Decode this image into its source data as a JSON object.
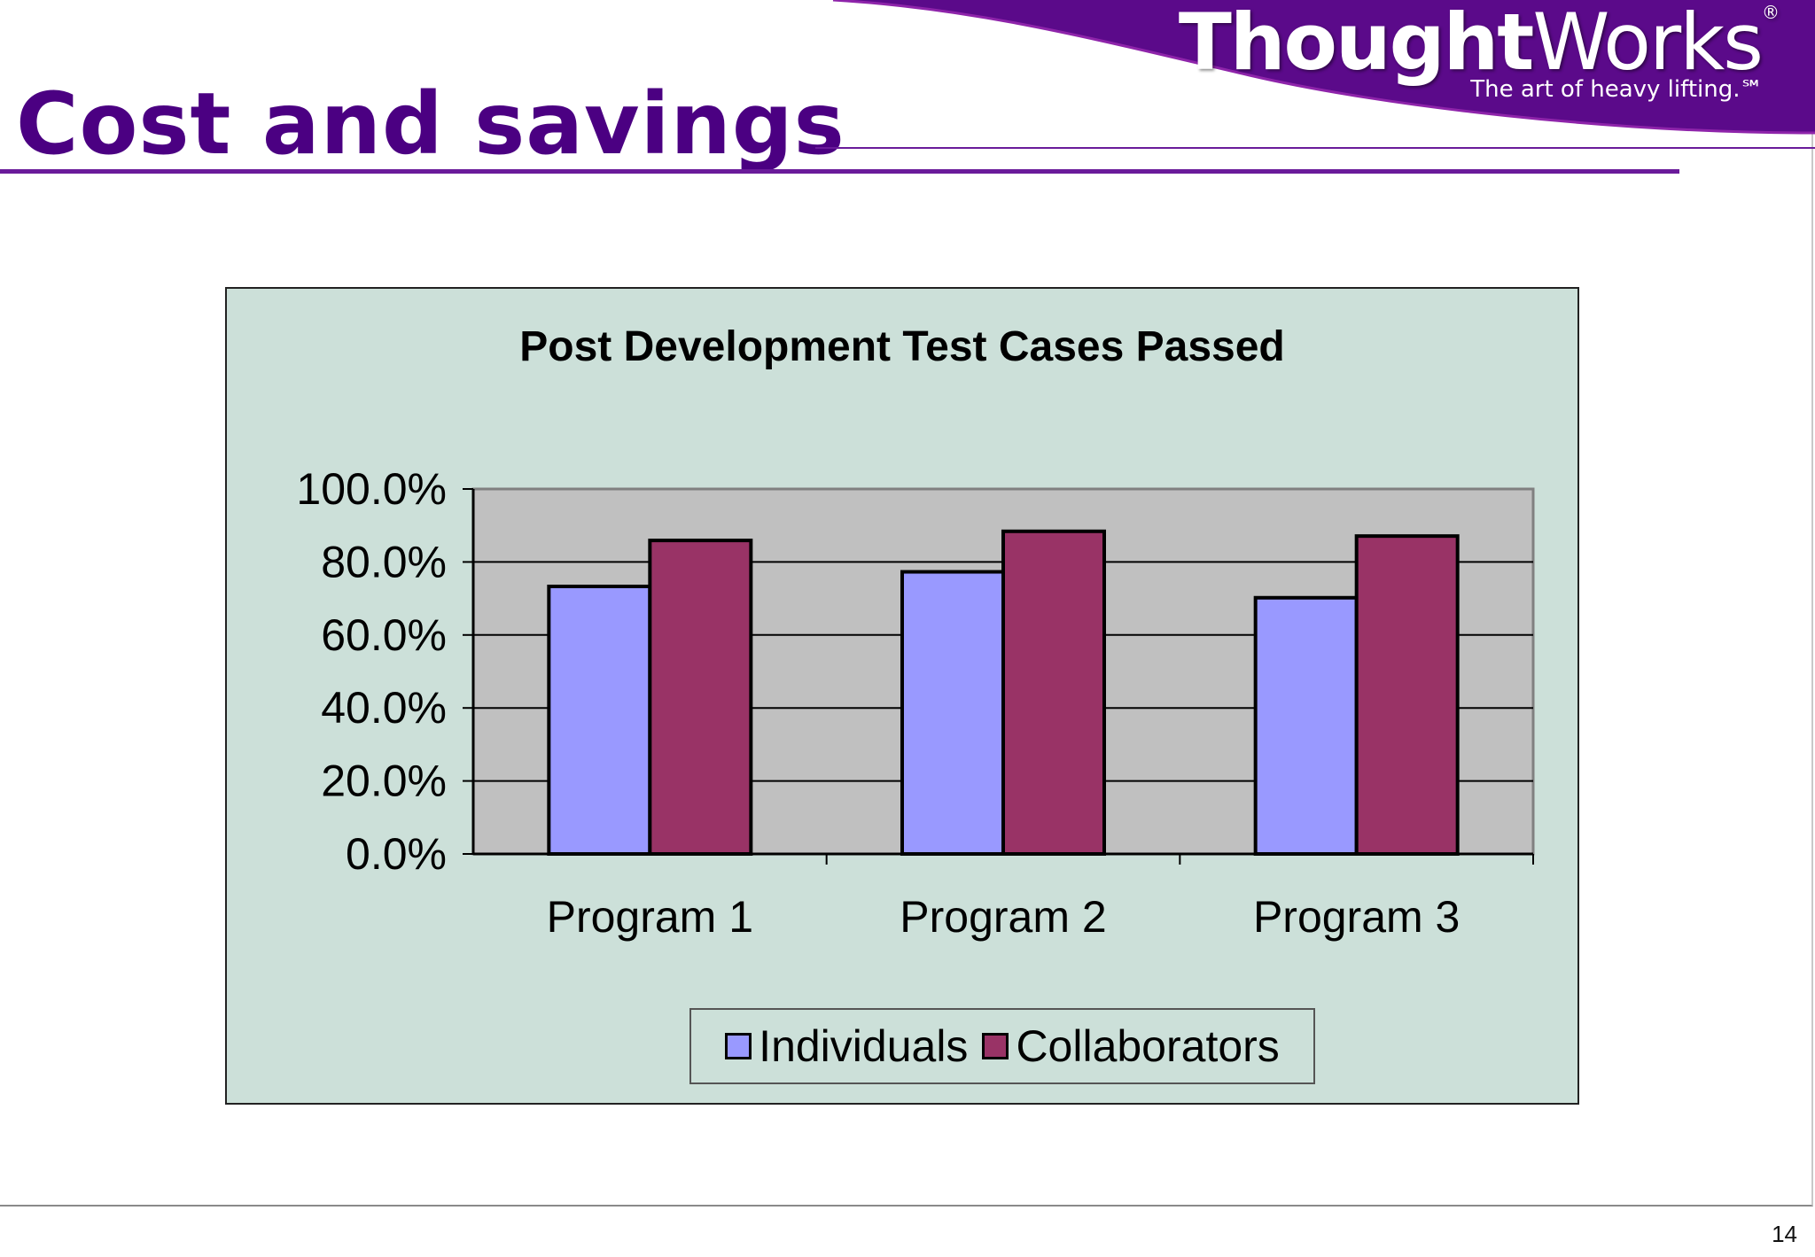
{
  "slide": {
    "title": "Cost and savings",
    "page_number": "14",
    "logo": {
      "word_bold": "Thought",
      "word_regular": "Works",
      "registered": "®",
      "tagline": "The art of heavy lifting.℠"
    },
    "colors": {
      "title": "#4b0082",
      "header_band": "#5b0a8a",
      "chart_background": "#cce0d9",
      "plot_area": "#c0c0c0"
    }
  },
  "chart_data": {
    "type": "bar",
    "title": "Post Development Test Cases Passed",
    "categories": [
      "Program 1",
      "Program 2",
      "Program 3"
    ],
    "series": [
      {
        "name": "Individuals",
        "color": "#9999ff",
        "values": [
          73.3,
          77.3,
          70.2
        ]
      },
      {
        "name": "Collaborators",
        "color": "#993366",
        "values": [
          85.9,
          88.4,
          87.1
        ]
      }
    ],
    "ylim": [
      0,
      100
    ],
    "yticks": [
      0,
      20,
      40,
      60,
      80,
      100
    ],
    "ytick_labels": [
      "0.0%",
      "20.0%",
      "40.0%",
      "60.0%",
      "80.0%",
      "100.0%"
    ],
    "xlabel": "",
    "ylabel": "",
    "grid": true,
    "legend_position": "bottom"
  }
}
